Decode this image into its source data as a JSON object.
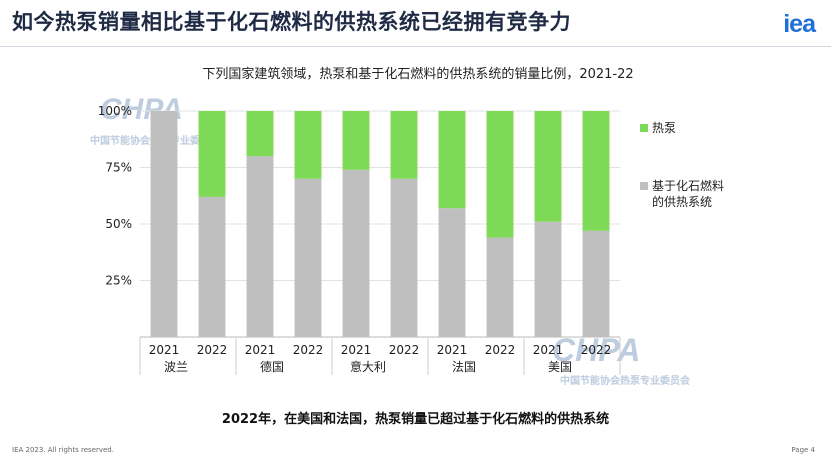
{
  "header": {
    "title": "如今热泵销量相比基于化石燃料的供热系统已经拥有竞争力",
    "logo_text": "iea"
  },
  "chart_data": {
    "type": "bar",
    "stacked": true,
    "title": "下列国家建筑领域，热泵和基于化石燃料的供热系统的销量比例，2021-22",
    "categories": [
      "2021",
      "2022",
      "2021",
      "2022",
      "2021",
      "2022",
      "2021",
      "2022",
      "2021",
      "2022"
    ],
    "groups": [
      "波兰",
      "德国",
      "意大利",
      "法国",
      "美国"
    ],
    "series": [
      {
        "name": "基于化石燃料的供热系统",
        "color": "#bfbfbf",
        "values": [
          100,
          62,
          80,
          70,
          74,
          70,
          57,
          44,
          51,
          47
        ]
      },
      {
        "name": "热泵",
        "color": "#7ed957",
        "values": [
          0,
          38,
          20,
          30,
          26,
          30,
          43,
          56,
          49,
          53
        ]
      }
    ],
    "y_ticks": [
      "25%",
      "50%",
      "75%",
      "100%"
    ],
    "ylim": [
      0,
      100
    ],
    "legend": [
      "热泵",
      "基于化石燃料的供热系统"
    ],
    "legend_position": "right"
  },
  "summary": "2022年，在美国和法国，热泵销量已超过基于化石燃料的供热系统",
  "footer": {
    "copyright": "IEA 2023. All rights reserved.",
    "page": "Page 4"
  },
  "watermark": {
    "brand": "CHPA",
    "subtitle": "中国节能协会热泵专业委员会"
  }
}
